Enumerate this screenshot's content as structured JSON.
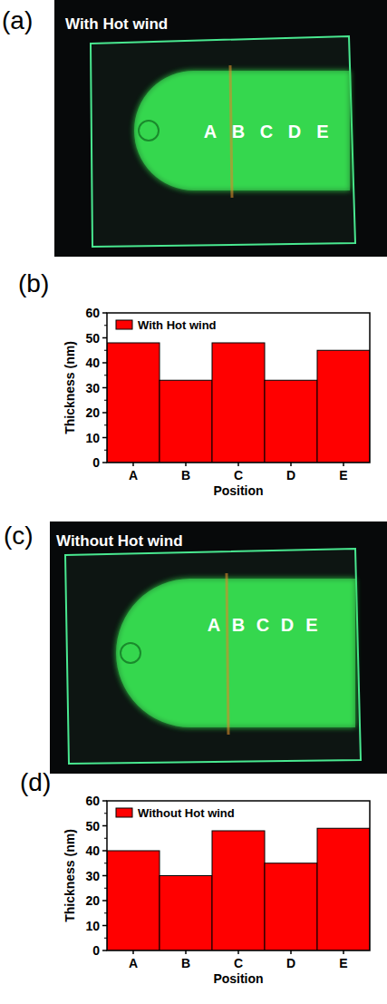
{
  "panel_labels": [
    "(a)",
    "(b)",
    "(c)",
    "(d)"
  ],
  "photos": [
    {
      "caption": "With Hot wind",
      "points": [
        "A",
        "B",
        "C",
        "D",
        "E"
      ]
    },
    {
      "caption": "Without Hot wind",
      "points": [
        "A",
        "B",
        "C",
        "D",
        "E"
      ]
    }
  ],
  "chart_data": [
    {
      "type": "bar",
      "x_label": "Position",
      "y_label": "Thickness (nm)",
      "categories": [
        "A",
        "B",
        "C",
        "D",
        "E"
      ],
      "series": [
        {
          "name": "With Hot wind",
          "color": "#ff0000",
          "values": [
            48,
            33,
            48,
            33,
            45
          ]
        }
      ],
      "ylim": [
        0,
        60
      ],
      "yticks": [
        0,
        10,
        20,
        30,
        40,
        50,
        60
      ],
      "grid": false,
      "legend": "upper left"
    },
    {
      "type": "bar",
      "x_label": "Position",
      "y_label": "Thickness (nm)",
      "categories": [
        "A",
        "B",
        "C",
        "D",
        "E"
      ],
      "series": [
        {
          "name": "Without Hot wind",
          "color": "#ff0000",
          "values": [
            40,
            30,
            48,
            35,
            49
          ]
        }
      ],
      "ylim": [
        0,
        60
      ],
      "yticks": [
        0,
        10,
        20,
        30,
        40,
        50,
        60
      ],
      "grid": false,
      "legend": "upper left"
    }
  ]
}
